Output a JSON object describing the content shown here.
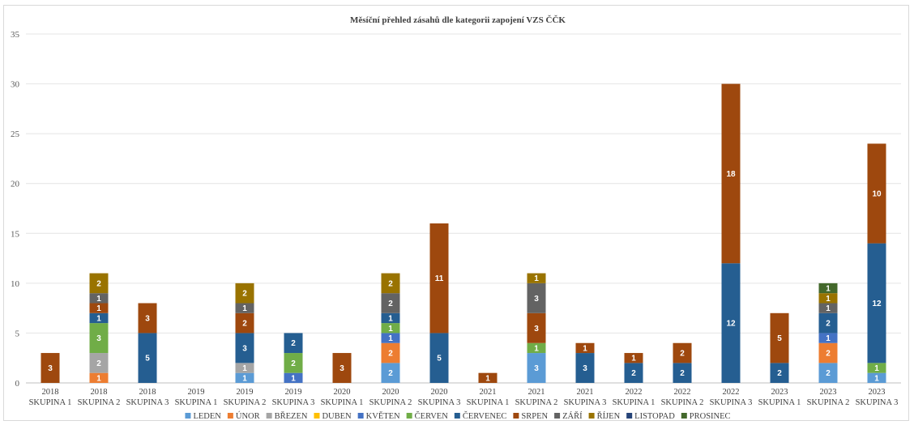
{
  "chart_data": {
    "type": "bar",
    "stacked": true,
    "title": "Měsíční přehled zásahů dle kategorii zapojení VZS ČČK",
    "ylim": [
      0,
      35
    ],
    "yticks": [
      0,
      5,
      10,
      15,
      20,
      25,
      30,
      35
    ],
    "grid": true,
    "legend_position": "bottom",
    "categories": [
      [
        "2018",
        "SKUPINA 1"
      ],
      [
        "2018",
        "SKUPINA 2"
      ],
      [
        "2018",
        "SKUPINA 3"
      ],
      [
        "2019",
        "SKUPINA 1"
      ],
      [
        "2019",
        "SKUPINA 2"
      ],
      [
        "2019",
        "SKUPINA 3"
      ],
      [
        "2020",
        "SKUPINA 1"
      ],
      [
        "2020",
        "SKUPINA 2"
      ],
      [
        "2020",
        "SKUPINA 3"
      ],
      [
        "2021",
        "SKUPINA 1"
      ],
      [
        "2021",
        "SKUPINA 2"
      ],
      [
        "2021",
        "SKUPINA 3"
      ],
      [
        "2022",
        "SKUPINA 1"
      ],
      [
        "2022",
        "SKUPINA 2"
      ],
      [
        "2022",
        "SKUPINA 3"
      ],
      [
        "2023",
        "SKUPINA 1"
      ],
      [
        "2023",
        "SKUPINA 2"
      ],
      [
        "2023",
        "SKUPINA 3"
      ]
    ],
    "series": [
      {
        "name": "LEDEN",
        "color": "#5b9bd5",
        "values": [
          0,
          0,
          0,
          0,
          1,
          0,
          0,
          2,
          0,
          0,
          3,
          0,
          0,
          0,
          0,
          0,
          2,
          1
        ]
      },
      {
        "name": "ÚNOR",
        "color": "#ed7d31",
        "values": [
          0,
          1,
          0,
          0,
          0,
          0,
          0,
          2,
          0,
          0,
          0,
          0,
          0,
          0,
          0,
          0,
          2,
          0
        ]
      },
      {
        "name": "BŘEZEN",
        "color": "#a5a5a5",
        "values": [
          0,
          2,
          0,
          0,
          1,
          0,
          0,
          0,
          0,
          0,
          0,
          0,
          0,
          0,
          0,
          0,
          0,
          0
        ]
      },
      {
        "name": "DUBEN",
        "color": "#ffc000",
        "values": [
          0,
          0,
          0,
          0,
          0,
          0,
          0,
          0,
          0,
          0,
          0,
          0,
          0,
          0,
          0,
          0,
          0,
          0
        ]
      },
      {
        "name": "KVĚTEN",
        "color": "#4472c4",
        "values": [
          0,
          0,
          0,
          0,
          0,
          1,
          0,
          1,
          0,
          0,
          0,
          0,
          0,
          0,
          0,
          0,
          1,
          0
        ]
      },
      {
        "name": "ČERVEN",
        "color": "#70ad47",
        "values": [
          0,
          3,
          0,
          0,
          0,
          2,
          0,
          1,
          0,
          0,
          1,
          0,
          0,
          0,
          0,
          0,
          0,
          1
        ]
      },
      {
        "name": "ČERVENEC",
        "color": "#255e91",
        "values": [
          0,
          1,
          5,
          0,
          3,
          2,
          0,
          1,
          5,
          0,
          0,
          3,
          2,
          2,
          12,
          2,
          2,
          12
        ]
      },
      {
        "name": "SRPEN",
        "color": "#9e480e",
        "values": [
          3,
          1,
          3,
          0,
          2,
          0,
          3,
          0,
          11,
          1,
          3,
          1,
          1,
          2,
          18,
          5,
          0,
          10
        ]
      },
      {
        "name": "ZÁŘÍ",
        "color": "#636363",
        "values": [
          0,
          1,
          0,
          0,
          1,
          0,
          0,
          2,
          0,
          0,
          3,
          0,
          0,
          0,
          0,
          0,
          1,
          0
        ]
      },
      {
        "name": "ŘÍJEN",
        "color": "#997300",
        "values": [
          0,
          2,
          0,
          0,
          2,
          0,
          0,
          2,
          0,
          0,
          1,
          0,
          0,
          0,
          0,
          0,
          1,
          0
        ]
      },
      {
        "name": "LISTOPAD",
        "color": "#264478",
        "values": [
          0,
          0,
          0,
          0,
          0,
          0,
          0,
          0,
          0,
          0,
          0,
          0,
          0,
          0,
          0,
          0,
          0,
          0
        ]
      },
      {
        "name": "PROSINEC",
        "color": "#43682b",
        "values": [
          0,
          0,
          0,
          0,
          0,
          0,
          0,
          0,
          0,
          0,
          0,
          0,
          0,
          0,
          0,
          0,
          1,
          0
        ]
      }
    ]
  }
}
